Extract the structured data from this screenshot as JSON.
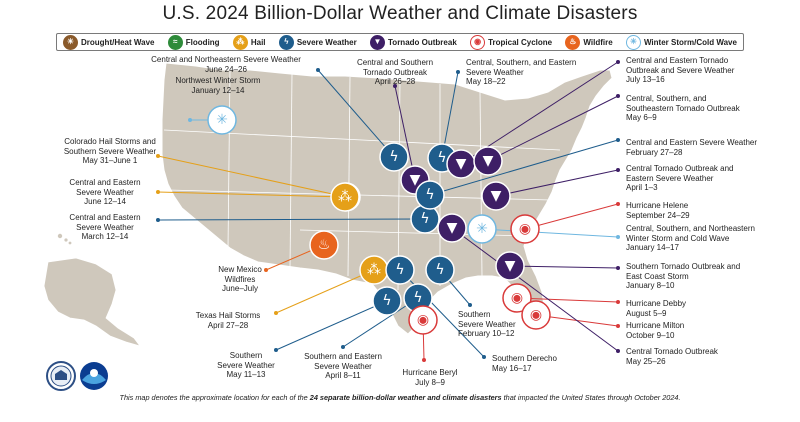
{
  "title": "U.S. 2024 Billion-Dollar Weather and Climate Disasters",
  "colors": {
    "drought": "#8a5a2b",
    "flooding": "#2e8b3a",
    "hail": "#e5a019",
    "severe": "#1f5d8c",
    "tornado": "#3e1f66",
    "cyclone": "#d93a3a",
    "wildfire": "#e8641e",
    "winter": "#6fb7e0",
    "land": "#cfc8bc",
    "state_border": "#ffffff"
  },
  "legend": [
    {
      "key": "drought",
      "label": "Drought/Heat Wave",
      "icon": "sun-icon",
      "glyph": "☀"
    },
    {
      "key": "flooding",
      "label": "Flooding",
      "icon": "flood-icon",
      "glyph": "≈"
    },
    {
      "key": "hail",
      "label": "Hail",
      "icon": "hail-icon",
      "glyph": "⁂"
    },
    {
      "key": "severe",
      "label": "Severe Weather",
      "icon": "storm-cloud-icon",
      "glyph": "ϟ"
    },
    {
      "key": "tornado",
      "label": "Tornado Outbreak",
      "icon": "tornado-icon",
      "glyph": "▼"
    },
    {
      "key": "cyclone",
      "label": "Tropical Cyclone",
      "icon": "cyclone-icon",
      "glyph": "◉"
    },
    {
      "key": "wildfire",
      "label": "Wildfire",
      "icon": "fire-icon",
      "glyph": "♨"
    },
    {
      "key": "winter",
      "label": "Winter Storm/Cold Wave",
      "icon": "snowflake-icon",
      "glyph": "✳"
    }
  ],
  "events": [
    {
      "name": "Northwest Winter Storm",
      "dates": "January 12–14",
      "type": "winter"
    },
    {
      "name": "Colorado Hail Storms and Southern Severe Weather",
      "lines": [
        "Colorado Hail Storms and",
        "Southern Severe Weather"
      ],
      "dates": "May 31–June 1",
      "type": "hail"
    },
    {
      "name": "Central and Eastern Severe Weather",
      "lines": [
        "Central and Eastern",
        "Severe Weather"
      ],
      "dates": "June 12–14",
      "type": "hail"
    },
    {
      "name": "Central and Eastern Severe Weather",
      "lines": [
        "Central and Eastern",
        "Severe Weather"
      ],
      "dates": "March 12–14",
      "type": "severe"
    },
    {
      "name": "Central and Northeastern Severe Weather",
      "dates": "June 24–26",
      "type": "severe"
    },
    {
      "name": "Central and Southern Tornado Outbreak",
      "lines": [
        "Central and Southern",
        "Tornado Outbreak"
      ],
      "dates": "April 26–28",
      "type": "tornado"
    },
    {
      "name": "Central, Southern, and Eastern Severe Weather",
      "lines": [
        "Central, Southern, and Eastern",
        "Severe Weather"
      ],
      "dates": "May 18–22",
      "type": "severe"
    },
    {
      "name": "Central and Eastern Tornado Outbreak and Severe Weather",
      "lines": [
        "Central and Eastern Tornado",
        "Outbreak and Severe Weather"
      ],
      "dates": "July 13–16",
      "type": "tornado"
    },
    {
      "name": "Central, Southern, and Southeastern Tornado Outbreak",
      "lines": [
        "Central, Southern, and",
        "Southeastern Tornado Outbreak"
      ],
      "dates": "May 6–9",
      "type": "tornado"
    },
    {
      "name": "Central and Eastern Severe Weather",
      "dates": "February 27–28",
      "type": "severe"
    },
    {
      "name": "Central Tornado Outbreak and Eastern Severe Weather",
      "lines": [
        "Central Tornado Outbreak and",
        "Eastern Severe Weather"
      ],
      "dates": "April 1–3",
      "type": "tornado"
    },
    {
      "name": "Hurricane Helene",
      "dates": "September 24–29",
      "type": "cyclone"
    },
    {
      "name": "Central, Southern, and Northeastern Winter Storm and Cold Wave",
      "lines": [
        "Central, Southern, and Northeastern",
        "Winter Storm and Cold Wave"
      ],
      "dates": "January 14–17",
      "type": "winter"
    },
    {
      "name": "Southern Tornado Outbreak and East Coast Storm",
      "lines": [
        "Southern Tornado Outbreak and",
        "East Coast Storm"
      ],
      "dates": "January 8–10",
      "type": "tornado"
    },
    {
      "name": "Hurricane Debby",
      "dates": "August 5–9",
      "type": "cyclone"
    },
    {
      "name": "Hurricane Milton",
      "dates": "October 9–10",
      "type": "cyclone"
    },
    {
      "name": "Central Tornado Outbreak",
      "dates": "May 25–26",
      "type": "tornado"
    },
    {
      "name": "New Mexico Wildfires",
      "lines": [
        "New Mexico",
        "Wildfires"
      ],
      "dates": "June–July",
      "type": "wildfire"
    },
    {
      "name": "Texas Hail Storms",
      "dates": "April 27–28",
      "type": "hail"
    },
    {
      "name": "Southern Severe Weather",
      "lines": [
        "Southern",
        "Severe Weather"
      ],
      "dates": "May 11–13",
      "type": "severe"
    },
    {
      "name": "Southern and Eastern Severe Weather",
      "lines": [
        "Southern and Eastern",
        "Severe Weather"
      ],
      "dates": "April 8–11",
      "type": "severe"
    },
    {
      "name": "Hurricane Beryl",
      "dates": "July 8–9",
      "type": "cyclone"
    },
    {
      "name": "Southern Derecho",
      "dates": "May 16–17",
      "type": "severe"
    },
    {
      "name": "Southern Severe Weather",
      "lines": [
        "Southern",
        "Severe Weather"
      ],
      "dates": "February 10–12",
      "type": "severe"
    }
  ],
  "footer": {
    "prefix": "This map denotes the approximate location for each of the ",
    "bold": "24 separate billion-dollar weather and climate disasters",
    "suffix": " that impacted the United States through October 2024."
  },
  "logos": [
    {
      "name": "doc-seal",
      "label": "U.S. Department of Commerce"
    },
    {
      "name": "noaa-logo",
      "label": "NOAA"
    }
  ]
}
